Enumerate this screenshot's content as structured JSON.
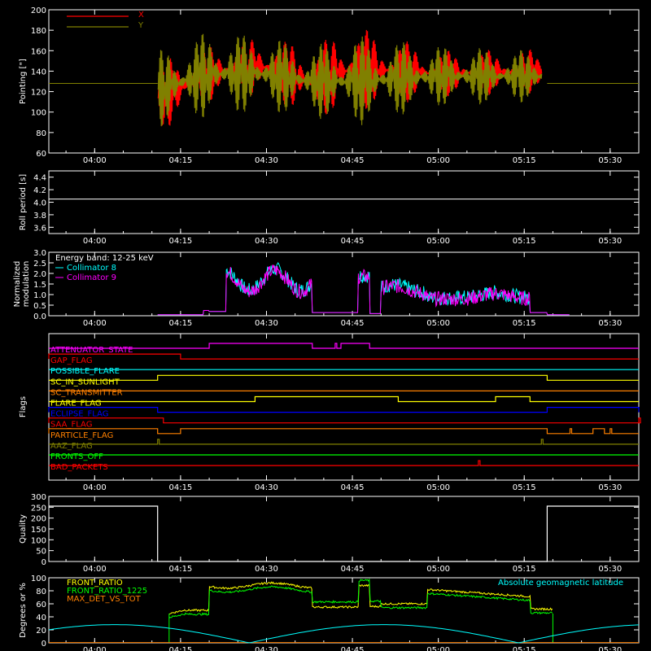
{
  "chart_data": [
    {
      "type": "line",
      "id": "pointing",
      "ylabel": "Pointing [\"]",
      "ylim": [
        60,
        200
      ],
      "yticks": [
        60,
        80,
        100,
        120,
        140,
        160,
        180,
        200
      ],
      "xticks": [
        "04:00",
        "04:15",
        "04:30",
        "04:45",
        "05:00",
        "05:15",
        "05:30"
      ],
      "series": [
        {
          "name": "X",
          "color": "#ff0000",
          "envelope": [
            {
              "t": "04:11",
              "lo": 78,
              "hi": 150
            },
            {
              "t": "04:20",
              "lo": 110,
              "hi": 165
            },
            {
              "t": "04:29",
              "lo": 115,
              "hi": 175
            },
            {
              "t": "04:38",
              "lo": 95,
              "hi": 165
            },
            {
              "t": "04:45",
              "lo": 100,
              "hi": 185
            },
            {
              "t": "05:00",
              "lo": 115,
              "hi": 160
            },
            {
              "t": "05:18",
              "lo": 118,
              "hi": 162
            }
          ]
        },
        {
          "name": "Y",
          "color": "#808000",
          "envelope": [
            {
              "t": "04:11",
              "lo": 85,
              "hi": 160
            },
            {
              "t": "04:20",
              "lo": 95,
              "hi": 180
            },
            {
              "t": "04:29",
              "lo": 100,
              "hi": 175
            },
            {
              "t": "04:38",
              "lo": 95,
              "hi": 165
            },
            {
              "t": "04:45",
              "lo": 85,
              "hi": 175
            },
            {
              "t": "05:00",
              "lo": 105,
              "hi": 165
            },
            {
              "t": "05:18",
              "lo": 110,
              "hi": 160
            }
          ]
        }
      ],
      "baseline": 128
    },
    {
      "type": "line",
      "id": "roll",
      "ylabel": "Roll period [s]",
      "ylim": [
        3.5,
        4.5
      ],
      "yticks": [
        3.6,
        3.8,
        4.0,
        4.2,
        4.4
      ],
      "xticks": [
        "04:00",
        "04:15",
        "04:30",
        "04:45",
        "05:00",
        "05:15",
        "05:30"
      ],
      "series": [
        {
          "name": "",
          "color": "#ffffff",
          "value": 4.05
        }
      ]
    },
    {
      "type": "line",
      "id": "modulation",
      "ylabel": "Normalized\nmodulation",
      "ylim": [
        0,
        3.0
      ],
      "yticks": [
        0.0,
        0.5,
        1.0,
        1.5,
        2.0,
        2.5,
        3.0
      ],
      "xticks": [
        "04:00",
        "04:15",
        "04:30",
        "04:45",
        "05:00",
        "05:15",
        "05:30"
      ],
      "title_note": "Energy band: 12-25 keV",
      "series": [
        {
          "name": "Collimator 8",
          "color": "#00ffff"
        },
        {
          "name": "Collimator 9",
          "color": "#ff00ff"
        }
      ]
    },
    {
      "type": "line",
      "id": "flags",
      "ylabel": "Flags",
      "xticks": [
        "04:00",
        "04:15",
        "04:30",
        "04:45",
        "05:00",
        "05:15",
        "05:30"
      ],
      "flags": [
        {
          "name": "ATTENUATOR_STATE",
          "color": "#ff00ff",
          "high": [
            [
              "04:20",
              "04:38"
            ],
            [
              "04:42",
              "04:42"
            ],
            [
              "04:43",
              "04:48"
            ]
          ]
        },
        {
          "name": "GAP_FLAG",
          "color": "#ff0000",
          "high": [
            [
              "03:52",
              "04:15"
            ]
          ]
        },
        {
          "name": "POSSIBLE_FLARE",
          "color": "#00ffff",
          "high": []
        },
        {
          "name": "SC_IN_SUNLIGHT",
          "color": "#ffff00",
          "high": [
            [
              "04:11",
              "05:19"
            ]
          ]
        },
        {
          "name": "SC_TRANSMITTER",
          "color": "#ff8000",
          "high": []
        },
        {
          "name": "FLARE_FLAG",
          "color": "#ffff00",
          "high": [
            [
              "04:28",
              "04:53"
            ],
            [
              "05:10",
              "05:16"
            ]
          ]
        },
        {
          "name": "ECLIPSE_FLAG",
          "color": "#0000ff",
          "high": [
            [
              "03:52",
              "04:11"
            ],
            [
              "05:19",
              "05:35"
            ]
          ]
        },
        {
          "name": "SAA_FLAG",
          "color": "#ff0000",
          "high": [
            [
              "03:52",
              "04:12"
            ],
            [
              "05:35",
              "05:35"
            ]
          ]
        },
        {
          "name": "PARTICLE_FLAG",
          "color": "#ff8000",
          "high": [
            [
              "03:52",
              "04:11"
            ],
            [
              "04:15",
              "05:19"
            ],
            [
              "05:23",
              "05:23"
            ],
            [
              "05:27",
              "05:29"
            ],
            [
              "05:30",
              "05:30"
            ]
          ]
        },
        {
          "name": "AAZ_FLAG",
          "color": "#808000",
          "high": [
            [
              "04:11",
              "04:11"
            ],
            [
              "05:18",
              "05:18"
            ]
          ]
        },
        {
          "name": "FRONTS_OFF",
          "color": "#00ff00",
          "high": []
        },
        {
          "name": "BAD_PACKETS",
          "color": "#ff0000",
          "high": [
            [
              "05:07",
              "05:07"
            ]
          ]
        }
      ]
    },
    {
      "type": "line",
      "id": "quality",
      "ylabel": "Quality",
      "ylim": [
        0,
        300
      ],
      "yticks": [
        0,
        50,
        100,
        150,
        200,
        250,
        300
      ],
      "xticks": [
        "04:00",
        "04:15",
        "04:30",
        "04:45",
        "05:00",
        "05:15",
        "05:30"
      ],
      "series": [
        {
          "name": "",
          "color": "#ffffff",
          "points": [
            [
              "03:52",
              255
            ],
            [
              "04:11",
              255
            ],
            [
              "04:11",
              0
            ],
            [
              "05:19",
              0
            ],
            [
              "05:19",
              255
            ],
            [
              "05:35",
              255
            ]
          ]
        }
      ]
    },
    {
      "type": "line",
      "id": "ratios",
      "ylabel": "Degrees or %",
      "ylim": [
        0,
        100
      ],
      "yticks": [
        0,
        20,
        40,
        60,
        80,
        100
      ],
      "xticks": [
        "04:00",
        "04:15",
        "04:30",
        "04:45",
        "05:00",
        "05:15",
        "05:30"
      ],
      "series": [
        {
          "name": "FRONT_RATIO",
          "color": "#ffff00"
        },
        {
          "name": "FRONT_RATIO_1225",
          "color": "#00ff00"
        },
        {
          "name": "MAX_DET_VS_TOT",
          "color": "#ff8000"
        },
        {
          "name": "Absolute geomagnetic latitude",
          "color": "#00ffff"
        }
      ]
    }
  ]
}
